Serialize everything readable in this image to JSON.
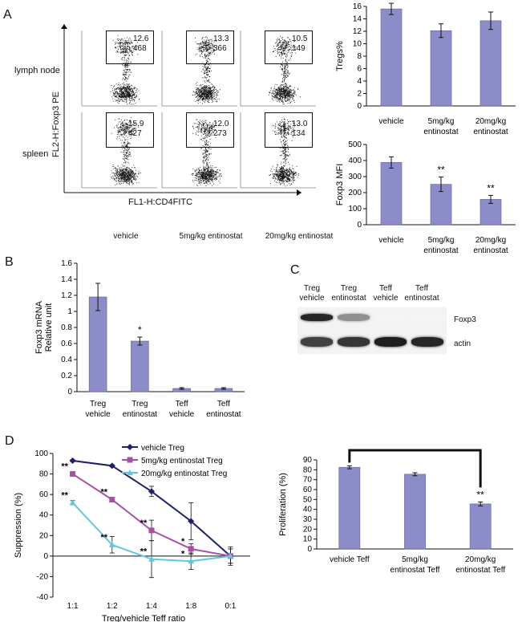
{
  "panels": {
    "A": "A",
    "B": "B",
    "C": "C",
    "D": "D"
  },
  "flow": {
    "row_labels": [
      "lymph node",
      "spleen"
    ],
    "y_axis_label": "FL2-H:Foxp3 PE",
    "x_axis_label": "FL1-H:CD4FITC",
    "column_labels": [
      "vehicle",
      "5mg/kg entinostat",
      "20mg/kg entinostat"
    ],
    "gates": [
      [
        {
          "pct": "12.6",
          "mfi": "468"
        },
        {
          "pct": "13.3",
          "mfi": "366"
        },
        {
          "pct": "10.5",
          "mfi": "149"
        }
      ],
      [
        {
          "pct": "15.9",
          "mfi": "427"
        },
        {
          "pct": "12.0",
          "mfi": "273"
        },
        {
          "pct": "13.0",
          "mfi": "134"
        }
      ]
    ]
  },
  "blot": {
    "lanes": [
      [
        "Treg",
        "vehicle"
      ],
      [
        "Treg",
        "entinostat"
      ],
      [
        "Teff",
        "vehicle"
      ],
      [
        "Teff",
        "entinostat"
      ]
    ],
    "rows": [
      "Foxp3",
      "actin"
    ],
    "foxp3_intensity": [
      0.92,
      0.45,
      0.0,
      0.0
    ],
    "actin_intensity": [
      0.8,
      0.85,
      0.95,
      0.92
    ]
  },
  "chart_data": [
    {
      "id": "A-top",
      "type": "bar",
      "categories": [
        [
          "vehicle"
        ],
        [
          "5mg/kg",
          "entinostat"
        ],
        [
          "20mg/kg",
          "entinostat"
        ]
      ],
      "values": [
        15.6,
        12.1,
        13.7
      ],
      "errors": [
        0.9,
        1.1,
        1.4
      ],
      "ylabel": "Tregs%",
      "ylim": [
        0,
        16
      ],
      "ticks": [
        "0",
        "2",
        "4",
        "6",
        "8",
        "10",
        "12",
        "14",
        "16"
      ],
      "annotations": [
        "",
        "",
        ""
      ],
      "color": "#8c8cc8"
    },
    {
      "id": "A-bottom",
      "type": "bar",
      "categories": [
        [
          "vehicle"
        ],
        [
          "5mg/kg",
          "entinostat"
        ],
        [
          "20mg/kg",
          "entinostat"
        ]
      ],
      "values": [
        388,
        252,
        158
      ],
      "errors": [
        35,
        45,
        25
      ],
      "ylabel": "Foxp3 MFI",
      "ylim": [
        0,
        500
      ],
      "ticks": [
        "0",
        "100",
        "200",
        "300",
        "400",
        "500"
      ],
      "annotations": [
        "",
        "**",
        "**"
      ],
      "color": "#8c8cc8"
    },
    {
      "id": "B",
      "type": "bar",
      "categories": [
        [
          "Treg",
          "vehicle"
        ],
        [
          "Treg",
          "entinostat"
        ],
        [
          "Teff",
          "vehicle"
        ],
        [
          "Teff",
          "entinostat"
        ]
      ],
      "values": [
        1.18,
        0.63,
        0.04,
        0.04
      ],
      "errors": [
        0.17,
        0.05,
        0.01,
        0.01
      ],
      "ylabel": [
        "Foxp3 mRNA",
        "Relative unit"
      ],
      "ylim": [
        0,
        1.6
      ],
      "ticks": [
        "0",
        "0.2",
        "0.4",
        "0.6",
        "0.8",
        "1",
        "1.2",
        "1.4",
        "1.6"
      ],
      "annotations": [
        "",
        "*",
        "",
        ""
      ],
      "color": "#8c8cc8"
    },
    {
      "id": "D-left",
      "type": "line",
      "categories": [
        "1:1",
        "1:2",
        "1:4",
        "1:8",
        "0:1"
      ],
      "xlabel": "Treg/vehicle Teff ratio",
      "ylabel": "Suppression (%)",
      "ylim": [
        -40,
        100
      ],
      "ticks": [
        "-40",
        "-20",
        "0",
        "20",
        "40",
        "60",
        "80",
        "100"
      ],
      "series": [
        {
          "name": "vehicle Treg",
          "color": "#1f1f6e",
          "marker": "diamond",
          "values": [
            93,
            88,
            63,
            34,
            0
          ],
          "errors": [
            1,
            1,
            5,
            18,
            9
          ],
          "annotations": [
            "",
            "",
            "",
            "",
            ""
          ]
        },
        {
          "name": "5mg/kg entinostat Treg",
          "color": "#a94fa9",
          "marker": "square",
          "values": [
            80,
            55,
            25,
            7,
            0
          ],
          "errors": [
            1,
            2,
            10,
            5,
            7
          ],
          "annotations": [
            "**",
            "**",
            "**",
            "*",
            ""
          ]
        },
        {
          "name": "20mg/kg entinostat Treg",
          "color": "#5fc8e0",
          "marker": "triangle",
          "values": [
            52,
            11,
            -3,
            -5,
            0
          ],
          "errors": [
            2,
            8,
            18,
            8,
            7
          ],
          "annotations": [
            "**",
            "**",
            "**",
            "*",
            ""
          ]
        }
      ]
    },
    {
      "id": "D-right",
      "type": "bar",
      "categories": [
        [
          "vehicle Teff"
        ],
        [
          "5mg/kg",
          "entinostat Teff"
        ],
        [
          "20mg/kg",
          "entinostat Teff"
        ]
      ],
      "values": [
        82.5,
        75.5,
        45.5
      ],
      "errors": [
        1.5,
        1.5,
        2
      ],
      "ylabel": "Proliferation (%)",
      "ylim": [
        0,
        90
      ],
      "ticks": [
        "0",
        "10",
        "20",
        "30",
        "40",
        "50",
        "60",
        "70",
        "80",
        "90"
      ],
      "annotations": [
        "",
        "",
        "**"
      ],
      "color": "#8c8cc8",
      "bracket": {
        "from": 0,
        "to": 2
      }
    }
  ]
}
